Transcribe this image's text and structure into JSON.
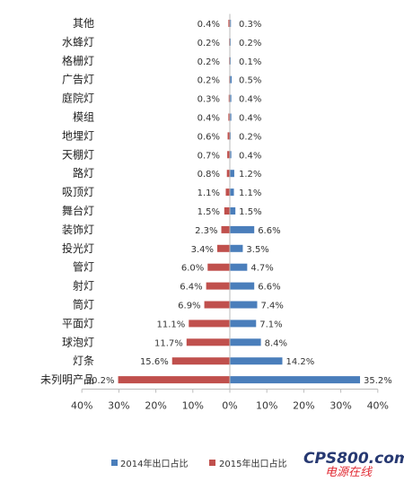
{
  "chart_data": {
    "type": "bar",
    "orientation": "horizontal-diverging",
    "categories": [
      "其他",
      "水蜂灯",
      "格栅灯",
      "广告灯",
      "庭院灯",
      "模组",
      "地埋灯",
      "天棚灯",
      "路灯",
      "吸顶灯",
      "舞台灯",
      "装饰灯",
      "投光灯",
      "管灯",
      "射灯",
      "筒灯",
      "平面灯",
      "球泡灯",
      "灯条",
      "未列明产品"
    ],
    "series": [
      {
        "name": "2014年出口占比",
        "color": "#4a7ebb",
        "side": "right",
        "values": [
          0.3,
          0.2,
          0.1,
          0.5,
          0.4,
          0.4,
          0.2,
          0.4,
          1.2,
          1.1,
          1.5,
          6.6,
          3.5,
          4.7,
          6.6,
          7.4,
          7.1,
          8.4,
          14.2,
          35.2
        ],
        "labels": [
          "0.3%",
          "0.2%",
          "0.1%",
          "0.5%",
          "0.4%",
          "0.4%",
          "0.2%",
          "0.4%",
          "1.2%",
          "1.1%",
          "1.5%",
          "6.6%",
          "3.5%",
          "4.7%",
          "6.6%",
          "7.4%",
          "7.1%",
          "8.4%",
          "14.2%",
          "35.2%"
        ]
      },
      {
        "name": "2015年出口占比",
        "color": "#c0504d",
        "side": "left",
        "values": [
          0.4,
          0.2,
          0.2,
          0.2,
          0.3,
          0.4,
          0.6,
          0.7,
          0.8,
          1.1,
          1.5,
          2.3,
          3.4,
          6.0,
          6.4,
          6.9,
          11.1,
          11.7,
          15.6,
          30.2
        ],
        "labels": [
          "0.4%",
          "0.2%",
          "0.2%",
          "0.2%",
          "0.3%",
          "0.4%",
          "0.6%",
          "0.7%",
          "0.8%",
          "1.1%",
          "1.5%",
          "2.3%",
          "3.4%",
          "6.0%",
          "6.4%",
          "6.9%",
          "11.1%",
          "11.7%",
          "15.6%",
          "30.2%"
        ]
      }
    ],
    "x_ticks": [
      "40%",
      "30%",
      "20%",
      "10%",
      "0%",
      "10%",
      "20%",
      "30%",
      "40%"
    ],
    "xlim": [
      -40,
      40
    ],
    "grid": false,
    "legend_position": "bottom"
  },
  "watermark": {
    "brand": "CPS800.com",
    "sub": "电源在线",
    "color_brand": "#1c2f6b",
    "color_sub": "#e0202a"
  }
}
